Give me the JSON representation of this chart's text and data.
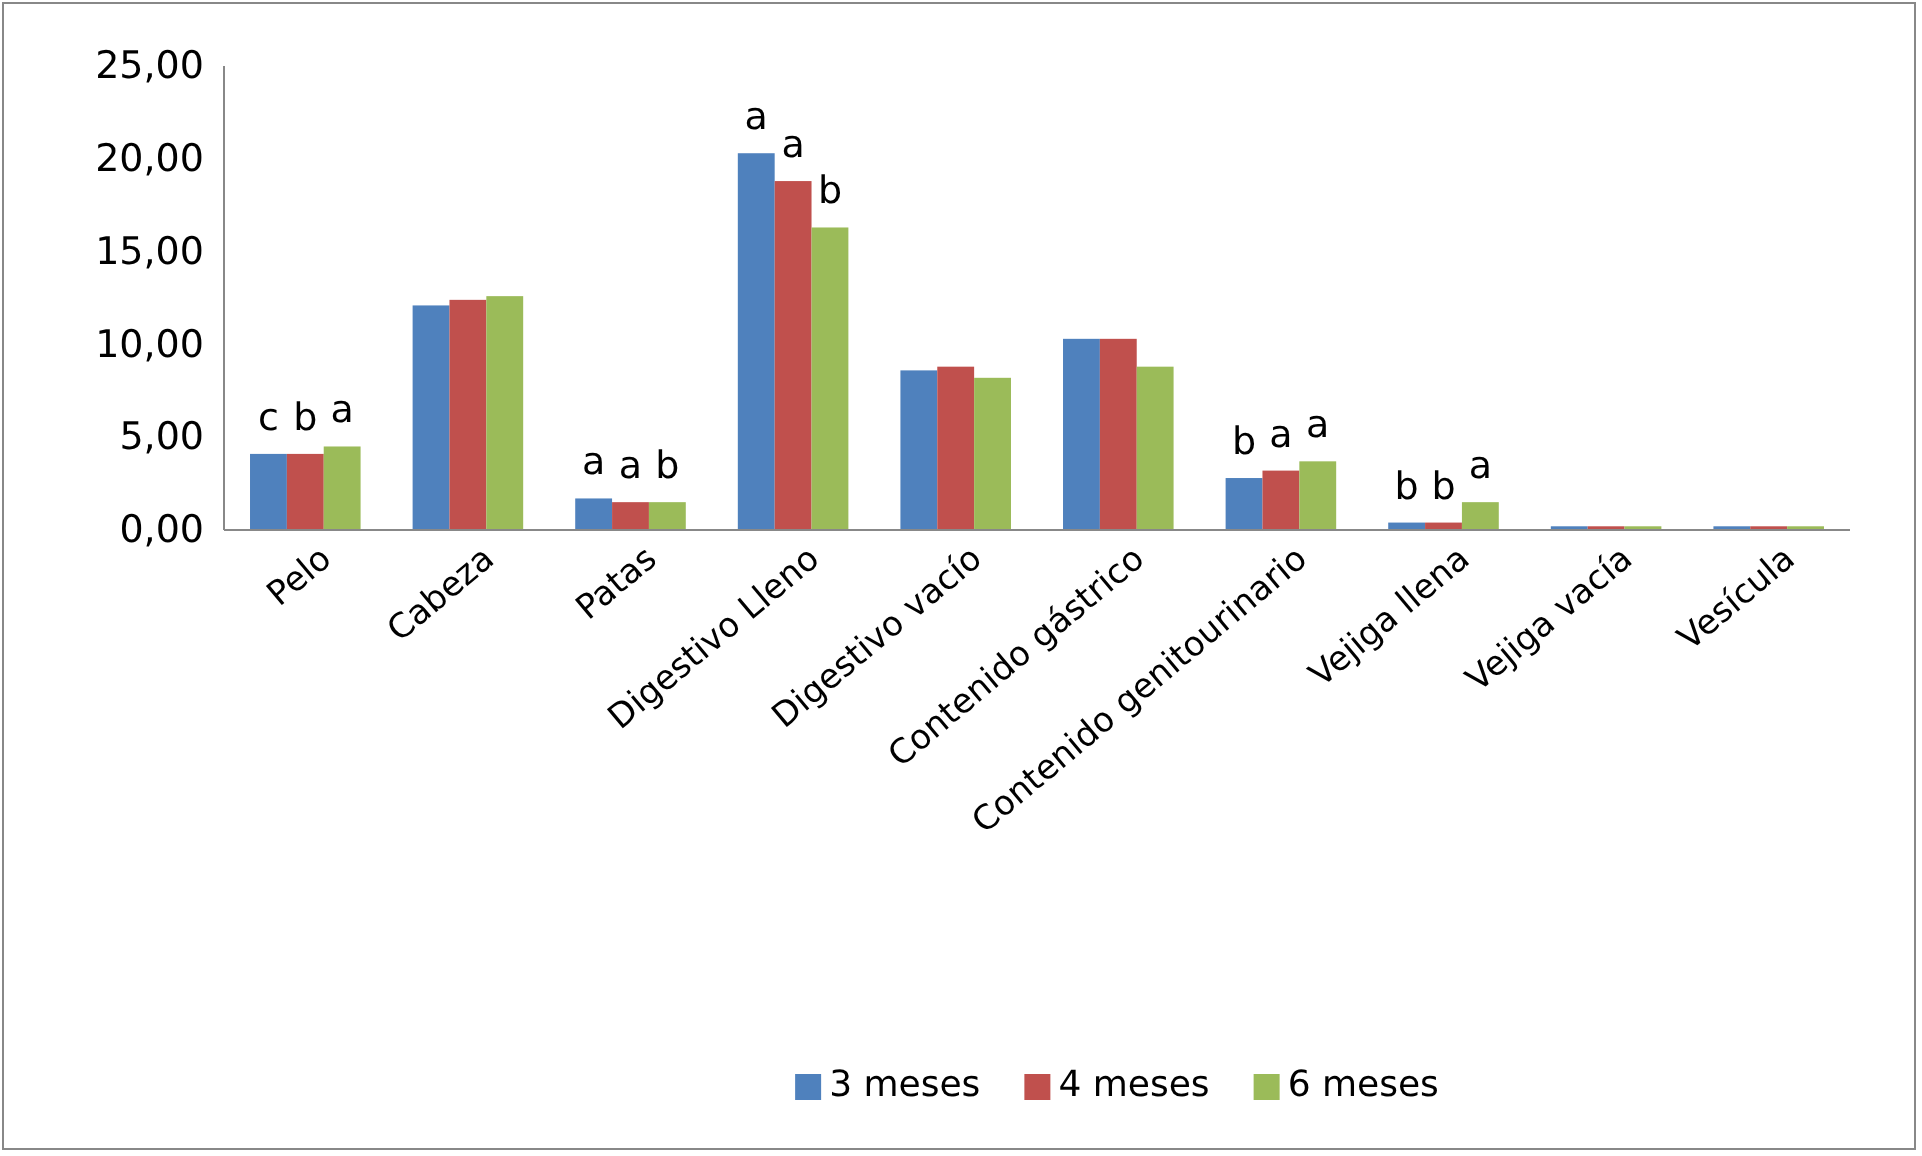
{
  "chart_data": {
    "type": "bar",
    "categories": [
      "Pelo",
      "Cabeza",
      "Patas",
      "Digestivo Lleno",
      "Digestivo vacío",
      "Contenido gástrico",
      "Contenido genitourinario",
      "Vejiga llena",
      "Vejiga vacía",
      "Vesícula"
    ],
    "series": [
      {
        "name": "3 meses",
        "color": "#4f81bd",
        "values": [
          4.1,
          12.1,
          1.7,
          20.3,
          8.6,
          10.3,
          2.8,
          0.4,
          0.2,
          0.2
        ],
        "value_labels": [
          "c",
          null,
          "a",
          "a",
          null,
          null,
          "b",
          "b",
          null,
          null
        ]
      },
      {
        "name": "4 meses",
        "color": "#c0504d",
        "values": [
          4.1,
          12.4,
          1.5,
          18.8,
          8.8,
          10.3,
          3.2,
          0.4,
          0.2,
          0.2
        ],
        "value_labels": [
          "b",
          null,
          "a",
          "a",
          null,
          null,
          "a",
          "b",
          null,
          null
        ]
      },
      {
        "name": "6 meses",
        "color": "#9bbb59",
        "values": [
          4.5,
          12.6,
          1.5,
          16.3,
          8.2,
          8.8,
          3.7,
          1.5,
          0.2,
          0.2
        ],
        "value_labels": [
          "a",
          null,
          "b",
          "b",
          null,
          null,
          "a",
          "a",
          null,
          null
        ]
      }
    ],
    "ylim": [
      0,
      25
    ],
    "yticks": [
      {
        "value": 0,
        "label": "0,00"
      },
      {
        "value": 5,
        "label": "5,00"
      },
      {
        "value": 10,
        "label": "10,00"
      },
      {
        "value": 15,
        "label": "15,00"
      },
      {
        "value": 20,
        "label": "20,00"
      },
      {
        "value": 25,
        "label": "25,00"
      }
    ],
    "grid": false,
    "legend": "bottom"
  }
}
